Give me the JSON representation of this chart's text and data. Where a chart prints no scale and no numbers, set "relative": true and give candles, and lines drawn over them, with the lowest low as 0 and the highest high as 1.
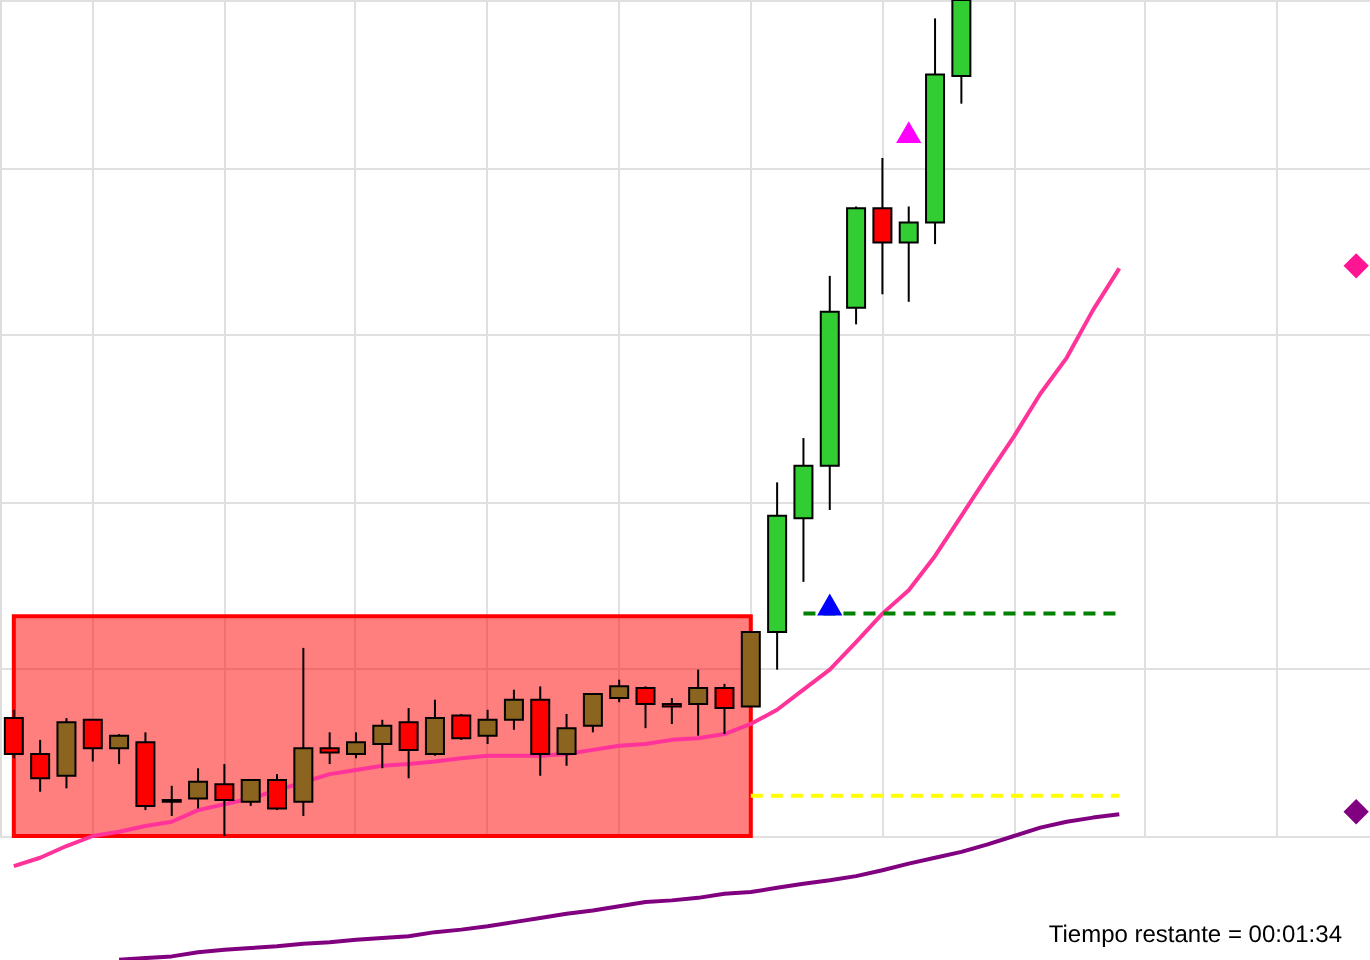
{
  "chart_data": {
    "type": "candlestick",
    "relative": true,
    "grid": true,
    "categories": [
      null,
      null,
      null,
      null,
      null,
      null,
      null,
      null,
      null,
      null,
      null,
      null,
      null,
      null,
      null,
      null,
      null,
      null,
      null,
      null,
      null,
      null,
      null,
      null,
      null,
      null,
      null,
      null,
      null,
      null,
      null,
      null,
      null,
      null,
      null,
      null,
      null,
      null,
      null,
      null,
      null,
      null,
      null,
      null,
      null,
      null,
      null,
      null,
      null,
      null,
      null,
      null
    ],
    "ohlc": [
      [
        0.141,
        0.151,
        0.093,
        0.098
      ],
      [
        0.098,
        0.115,
        0.053,
        0.069
      ],
      [
        0.072,
        0.141,
        0.057,
        0.136
      ],
      [
        0.139,
        0.139,
        0.089,
        0.105
      ],
      [
        0.105,
        0.122,
        0.086,
        0.12
      ],
      [
        0.112,
        0.124,
        0.031,
        0.036
      ],
      [
        0.043,
        0.06,
        0.024,
        0.041
      ],
      [
        0.045,
        0.081,
        0.033,
        0.065
      ],
      [
        0.062,
        0.086,
        0.0,
        0.043
      ],
      [
        0.041,
        0.067,
        0.036,
        0.067
      ],
      [
        0.067,
        0.074,
        0.031,
        0.033
      ],
      [
        0.041,
        0.225,
        0.024,
        0.105
      ],
      [
        0.105,
        0.124,
        0.086,
        0.1
      ],
      [
        0.098,
        0.124,
        0.093,
        0.112
      ],
      [
        0.11,
        0.139,
        0.081,
        0.132
      ],
      [
        0.136,
        0.153,
        0.069,
        0.103
      ],
      [
        0.098,
        0.163,
        0.096,
        0.141
      ],
      [
        0.144,
        0.146,
        0.115,
        0.117
      ],
      [
        0.12,
        0.151,
        0.11,
        0.139
      ],
      [
        0.139,
        0.175,
        0.127,
        0.163
      ],
      [
        0.163,
        0.179,
        0.072,
        0.098
      ],
      [
        0.098,
        0.146,
        0.084,
        0.129
      ],
      [
        0.132,
        0.17,
        0.124,
        0.17
      ],
      [
        0.165,
        0.187,
        0.16,
        0.179
      ],
      [
        0.177,
        0.179,
        0.129,
        0.158
      ],
      [
        0.158,
        0.165,
        0.134,
        0.155
      ],
      [
        0.158,
        0.199,
        0.12,
        0.177
      ],
      [
        0.177,
        0.182,
        0.122,
        0.153
      ],
      [
        0.155,
        0.244,
        0.155,
        0.244
      ],
      [
        0.244,
        0.423,
        0.199,
        0.383
      ],
      [
        0.38,
        0.476,
        0.304,
        0.443
      ],
      [
        0.443,
        0.67,
        0.39,
        0.627
      ],
      [
        0.632,
        0.753,
        0.612,
        0.751
      ],
      [
        0.751,
        0.811,
        0.648,
        0.71
      ],
      [
        0.71,
        0.753,
        0.639,
        0.734
      ],
      [
        0.734,
        0.978,
        0.708,
        0.911
      ],
      [
        0.909,
        1.0,
        0.876,
        1.0
      ],
      null,
      null,
      null,
      null,
      null,
      null,
      null,
      null,
      null,
      null,
      null,
      null,
      null,
      null,
      null
    ],
    "colors": [
      "#ff0000",
      "#ff0000",
      "#8b6420",
      "#ff0000",
      "#8b6420",
      "#ff0000",
      "#ff0000",
      "#8b6420",
      "#ff0000",
      "#8b6420",
      "#ff0000",
      "#8b6420",
      "#ff0000",
      "#8b6420",
      "#8b6420",
      "#ff0000",
      "#8b6420",
      "#ff0000",
      "#8b6420",
      "#8b6420",
      "#ff0000",
      "#8b6420",
      "#8b6420",
      "#8b6420",
      "#ff0000",
      "#ff0000",
      "#8b6420",
      "#ff0000",
      "#8b6420",
      "#32cd32",
      "#32cd32",
      "#32cd32",
      "#32cd32",
      "#ff0000",
      "#32cd32",
      "#32cd32",
      "#32cd32",
      null,
      null,
      null,
      null,
      null,
      null,
      null,
      null,
      null,
      null,
      null,
      null,
      null,
      null,
      null
    ],
    "series": [
      {
        "type": "area",
        "color": "#ff0000",
        "values": [
          0.263,
          0.263,
          0.263,
          0.263,
          0.263,
          0.263,
          0.263,
          0.263,
          0.263,
          0.263,
          0.263,
          0.263,
          0.263,
          0.263,
          0.263,
          0.263,
          0.263,
          0.263,
          0.263,
          0.263,
          0.263,
          0.263,
          0.263,
          0.263,
          0.263,
          0.263,
          0.263,
          0.263,
          0.263,
          null,
          null,
          null,
          null,
          null,
          null,
          null,
          null,
          null,
          null,
          null,
          null,
          null,
          null,
          null,
          null,
          null,
          null,
          null,
          null,
          null,
          null,
          null
        ]
      },
      {
        "type": "line",
        "color": "#ff3399",
        "line_style": "solid",
        "values": [
          -0.036,
          -0.026,
          -0.012,
          0.0,
          0.005,
          0.012,
          0.017,
          0.031,
          0.038,
          0.045,
          null,
          null,
          0.074,
          0.079,
          0.084,
          0.086,
          0.089,
          0.093,
          0.096,
          0.096,
          0.096,
          0.098,
          0.103,
          0.108,
          0.11,
          0.115,
          0.117,
          0.122,
          0.134,
          0.151,
          0.175,
          0.199,
          0.232,
          0.266,
          0.294,
          0.335,
          0.383,
          0.431,
          0.478,
          0.529,
          0.572,
          0.629,
          0.679,
          null,
          null,
          null,
          null,
          null,
          null,
          null,
          null,
          null
        ]
      },
      {
        "type": "line",
        "color": "#800080",
        "line_style": "solid",
        "values": [
          null,
          null,
          null,
          null,
          -0.148,
          -0.146,
          -0.144,
          -0.139,
          -0.136,
          -0.134,
          -0.132,
          -0.129,
          -0.127,
          -0.124,
          -0.122,
          -0.12,
          -0.115,
          -0.112,
          -0.108,
          -0.103,
          -0.098,
          -0.093,
          -0.089,
          -0.084,
          -0.079,
          -0.077,
          -0.074,
          -0.069,
          -0.067,
          -0.062,
          -0.057,
          -0.053,
          -0.048,
          -0.041,
          -0.033,
          -0.026,
          -0.019,
          -0.01,
          0.0,
          0.01,
          0.017,
          0.022,
          0.026,
          null,
          null,
          null,
          null,
          null,
          null,
          null,
          null,
          null
        ]
      },
      {
        "type": "line",
        "color": "#008000",
        "line_style": "dashed",
        "values": [
          null,
          null,
          null,
          null,
          null,
          null,
          null,
          null,
          null,
          null,
          null,
          null,
          null,
          null,
          null,
          null,
          null,
          null,
          null,
          null,
          null,
          null,
          null,
          null,
          null,
          null,
          null,
          null,
          null,
          null,
          0.266,
          0.266,
          0.266,
          0.266,
          0.266,
          0.266,
          0.266,
          0.266,
          0.266,
          0.266,
          0.266,
          0.266,
          0.266,
          null,
          null,
          null,
          null,
          null,
          null,
          null,
          null,
          null
        ]
      },
      {
        "type": "line",
        "color": "#ffff00",
        "line_style": "dashed",
        "values": [
          null,
          null,
          null,
          null,
          null,
          null,
          null,
          null,
          null,
          null,
          null,
          null,
          null,
          null,
          null,
          null,
          null,
          null,
          null,
          null,
          null,
          null,
          null,
          null,
          null,
          null,
          null,
          null,
          0.048,
          0.048,
          0.048,
          0.048,
          0.048,
          0.048,
          0.048,
          0.048,
          0.048,
          0.048,
          0.048,
          0.048,
          0.048,
          0.048,
          0.048,
          null,
          null,
          null,
          null,
          null,
          null,
          null,
          null,
          null
        ]
      },
      {
        "type": "scatter",
        "color": "#0000ff",
        "marker": "triangle",
        "values": [
          null,
          null,
          null,
          null,
          null,
          null,
          null,
          null,
          null,
          null,
          null,
          null,
          null,
          null,
          null,
          null,
          null,
          null,
          null,
          null,
          null,
          null,
          null,
          null,
          null,
          null,
          null,
          null,
          null,
          null,
          null,
          0.277,
          null,
          null,
          null,
          null,
          null,
          null,
          null,
          null,
          null,
          null,
          null,
          null,
          null,
          null,
          null,
          null,
          null,
          null,
          null,
          null
        ]
      },
      {
        "type": "scatter",
        "color": "#ff00ff",
        "marker": "triangle",
        "values": [
          null,
          null,
          null,
          null,
          null,
          null,
          null,
          null,
          null,
          null,
          null,
          null,
          null,
          null,
          null,
          null,
          null,
          null,
          null,
          null,
          null,
          null,
          null,
          null,
          null,
          null,
          null,
          null,
          null,
          null,
          null,
          null,
          null,
          null,
          0.842,
          null,
          null,
          null,
          null,
          null,
          null,
          null,
          null,
          null,
          null,
          null,
          null,
          null,
          null,
          null,
          null,
          null
        ]
      },
      {
        "type": "scatter",
        "color": "#ff1493",
        "marker": "diamond",
        "values": [
          null,
          null,
          null,
          null,
          null,
          null,
          null,
          null,
          null,
          null,
          null,
          null,
          null,
          null,
          null,
          null,
          null,
          null,
          null,
          null,
          null,
          null,
          null,
          null,
          null,
          null,
          null,
          null,
          null,
          null,
          null,
          null,
          null,
          null,
          null,
          null,
          null,
          null,
          null,
          null,
          null,
          null,
          null,
          null,
          null,
          null,
          null,
          null,
          null,
          null,
          null,
          0.682
        ]
      },
      {
        "type": "scatter",
        "color": "#800080",
        "marker": "diamond",
        "values": [
          null,
          null,
          null,
          null,
          null,
          null,
          null,
          null,
          null,
          null,
          null,
          null,
          null,
          null,
          null,
          null,
          null,
          null,
          null,
          null,
          null,
          null,
          null,
          null,
          null,
          null,
          null,
          null,
          null,
          null,
          null,
          null,
          null,
          null,
          null,
          null,
          null,
          null,
          null,
          null,
          null,
          null,
          null,
          null,
          null,
          null,
          null,
          null,
          null,
          null,
          null,
          0.029
        ]
      }
    ],
    "annotations": [
      "Tiempo restante = 00:01:34"
    ]
  }
}
